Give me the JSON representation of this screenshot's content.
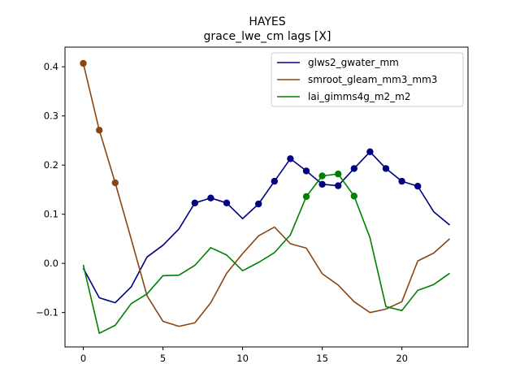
{
  "chart_data": {
    "type": "line",
    "title": "HAYES",
    "subtitle": "grace_lwe_cm lags [X]",
    "xlabel": "",
    "ylabel": "",
    "xlim": [
      -1.15,
      24.15
    ],
    "ylim": [
      -0.17,
      0.44
    ],
    "xticks": [
      0,
      5,
      10,
      15,
      20
    ],
    "yticks": [
      -0.1,
      0.0,
      0.1,
      0.2,
      0.3,
      0.4
    ],
    "xtick_labels": [
      "0",
      "5",
      "10",
      "15",
      "20"
    ],
    "ytick_labels": [
      "−0.1",
      "0.0",
      "0.1",
      "0.2",
      "0.3",
      "0.4"
    ],
    "grid": false,
    "legend_position": "upper right",
    "x": [
      0,
      1,
      2,
      3,
      4,
      5,
      6,
      7,
      8,
      9,
      10,
      11,
      12,
      13,
      14,
      15,
      16,
      17,
      18,
      19,
      20,
      21,
      22,
      23
    ],
    "series": [
      {
        "name": "glws2_gwater_mm",
        "color": "#000080",
        "values": [
          -0.01,
          -0.07,
          -0.08,
          -0.048,
          0.013,
          0.037,
          0.07,
          0.123,
          0.133,
          0.123,
          0.091,
          0.121,
          0.167,
          0.213,
          0.188,
          0.161,
          0.158,
          0.193,
          0.227,
          0.193,
          0.167,
          0.157,
          0.105,
          0.078
        ],
        "markers": [
          7,
          8,
          9,
          11,
          12,
          13,
          14,
          15,
          16,
          17,
          18,
          19,
          20,
          21
        ]
      },
      {
        "name": "smroot_gleam_mm3_mm3",
        "color": "#8B4513",
        "values": [
          0.407,
          0.271,
          0.164,
          0.05,
          -0.066,
          -0.118,
          -0.128,
          -0.121,
          -0.08,
          -0.02,
          0.02,
          0.056,
          0.074,
          0.04,
          0.031,
          -0.021,
          -0.044,
          -0.078,
          -0.1,
          -0.093,
          -0.078,
          0.005,
          0.021,
          0.05
        ],
        "markers": [
          0,
          1,
          2
        ]
      },
      {
        "name": "lai_gimms4g_m2_m2",
        "color": "#008000",
        "values": [
          -0.003,
          -0.142,
          -0.126,
          -0.082,
          -0.062,
          -0.025,
          -0.024,
          -0.004,
          0.032,
          0.017,
          -0.015,
          0.002,
          0.022,
          0.058,
          0.136,
          0.178,
          0.182,
          0.137,
          0.052,
          -0.088,
          -0.096,
          -0.055,
          -0.043,
          -0.02
        ],
        "markers": [
          14,
          15,
          16,
          17
        ]
      }
    ]
  }
}
